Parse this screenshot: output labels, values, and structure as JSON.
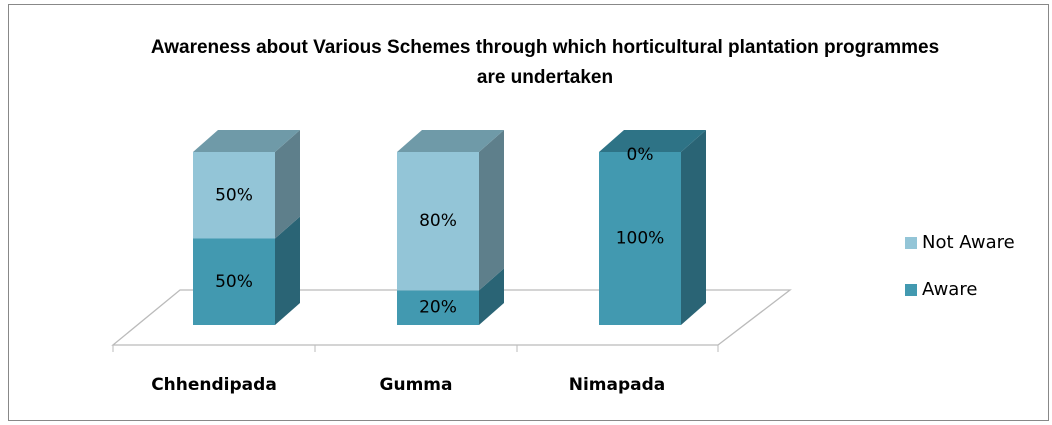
{
  "chart_data": {
    "type": "bar3d_stacked",
    "title": "Awareness about Various Schemes through which horticultural plantation programmes are undertaken",
    "categories": [
      "Chhendipada",
      "Gumma",
      "Nimapada"
    ],
    "ylim": [
      0,
      100
    ],
    "series": [
      {
        "name": "Aware",
        "color": "#4299b0",
        "side": "#2a6475",
        "top": "#2e7386",
        "values": [
          50,
          20,
          100
        ],
        "value_labels": [
          "50%",
          "20%",
          "100%"
        ]
      },
      {
        "name": "Not Aware",
        "color": "#93c5d7",
        "side": "#5e7f8b",
        "top": "#6f9aa8",
        "values": [
          50,
          80,
          0
        ],
        "value_labels": [
          "50%",
          "80%",
          "0%"
        ]
      }
    ],
    "legend": "right"
  }
}
